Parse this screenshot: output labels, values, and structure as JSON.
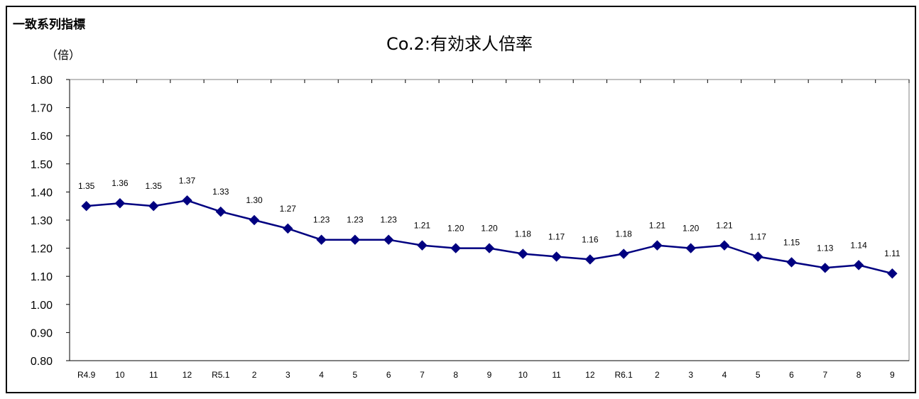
{
  "header": {
    "corner_label": "一致系列指標",
    "unit_label": "（倍）",
    "title": "Co.2:有効求人倍率"
  },
  "colors": {
    "line": "#000080",
    "marker": "#000080",
    "axis": "#000000",
    "frame": "#000000"
  },
  "chart_data": {
    "type": "line",
    "title": "Co.2:有効求人倍率",
    "ylabel": "（倍）",
    "xlabel": "",
    "ylim": [
      0.8,
      1.8
    ],
    "y_ticks": [
      "1.80",
      "1.70",
      "1.60",
      "1.50",
      "1.40",
      "1.30",
      "1.20",
      "1.10",
      "1.00",
      "0.90",
      "0.80"
    ],
    "grid": false,
    "marker": "diamond",
    "categories": [
      "R4.9",
      "10",
      "11",
      "12",
      "R5.1",
      "2",
      "3",
      "4",
      "5",
      "6",
      "7",
      "8",
      "9",
      "10",
      "11",
      "12",
      "R6.1",
      "2",
      "3",
      "4",
      "5",
      "6",
      "7",
      "8",
      "9"
    ],
    "values": [
      1.35,
      1.36,
      1.35,
      1.37,
      1.33,
      1.3,
      1.27,
      1.23,
      1.23,
      1.23,
      1.21,
      1.2,
      1.2,
      1.18,
      1.17,
      1.16,
      1.18,
      1.21,
      1.2,
      1.21,
      1.17,
      1.15,
      1.13,
      1.14,
      1.11
    ],
    "labels": [
      "1.35",
      "1.36",
      "1.35",
      "1.37",
      "1.33",
      "1.30",
      "1.27",
      "1.23",
      "1.23",
      "1.23",
      "1.21",
      "1.20",
      "1.20",
      "1.18",
      "1.17",
      "1.16",
      "1.18",
      "1.21",
      "1.20",
      "1.21",
      "1.17",
      "1.15",
      "1.13",
      "1.14",
      "1.11"
    ]
  }
}
